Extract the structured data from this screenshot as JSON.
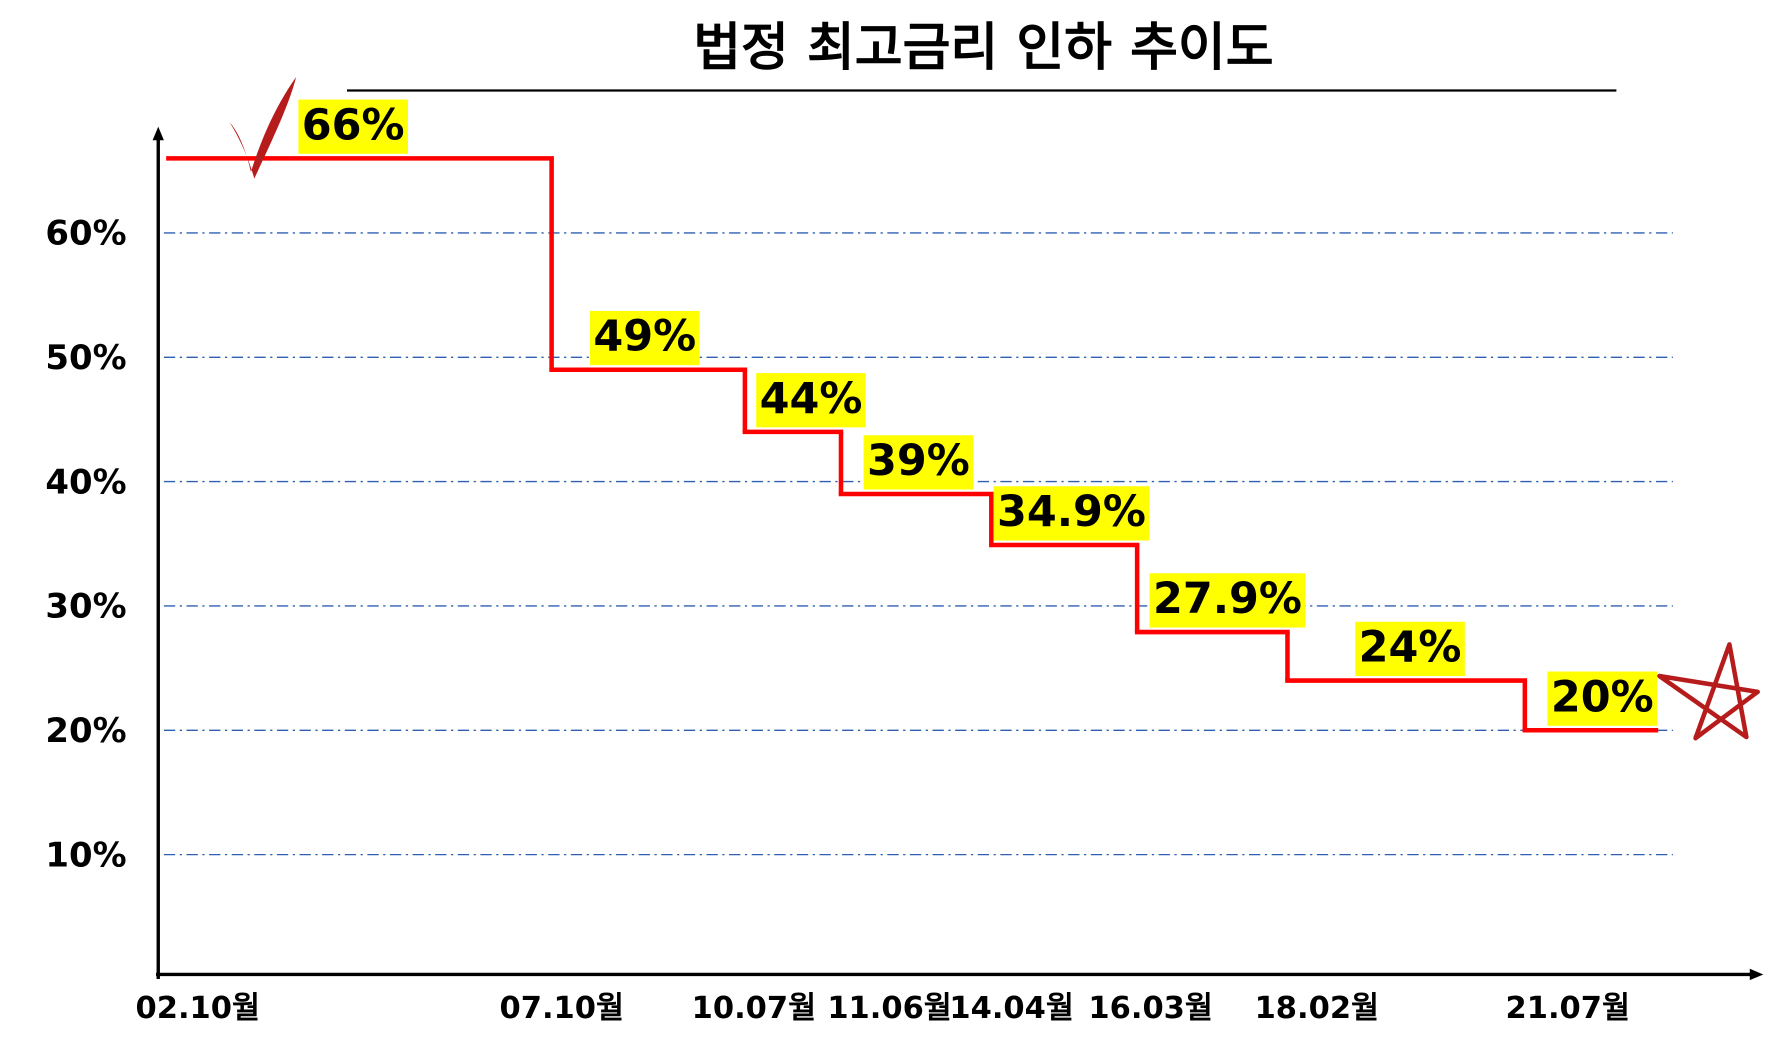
{
  "chart_data": {
    "type": "step",
    "title": "법정 최고금리 인하 추이도",
    "categories": [
      "02.10월",
      "07.10월",
      "10.07월",
      "11.06월",
      "14.04월",
      "16.03월",
      "18.02월",
      "21.07월"
    ],
    "values": [
      66,
      49,
      44,
      39,
      34.9,
      27.9,
      24,
      20
    ],
    "value_labels": [
      "66%",
      "49%",
      "44%",
      "39%",
      "34.9%",
      "27.9%",
      "24%",
      "20%"
    ],
    "color": "#ff0000",
    "label_background": "#ffff00",
    "ylim": [
      0,
      68
    ],
    "yticks": [
      {
        "value": 10,
        "label": "10%"
      },
      {
        "value": 20,
        "label": "20%"
      },
      {
        "value": 30,
        "label": "30%"
      },
      {
        "value": 40,
        "label": "40%"
      },
      {
        "value": 50,
        "label": "50%"
      },
      {
        "value": 60,
        "label": "60%"
      }
    ],
    "grid": true
  }
}
